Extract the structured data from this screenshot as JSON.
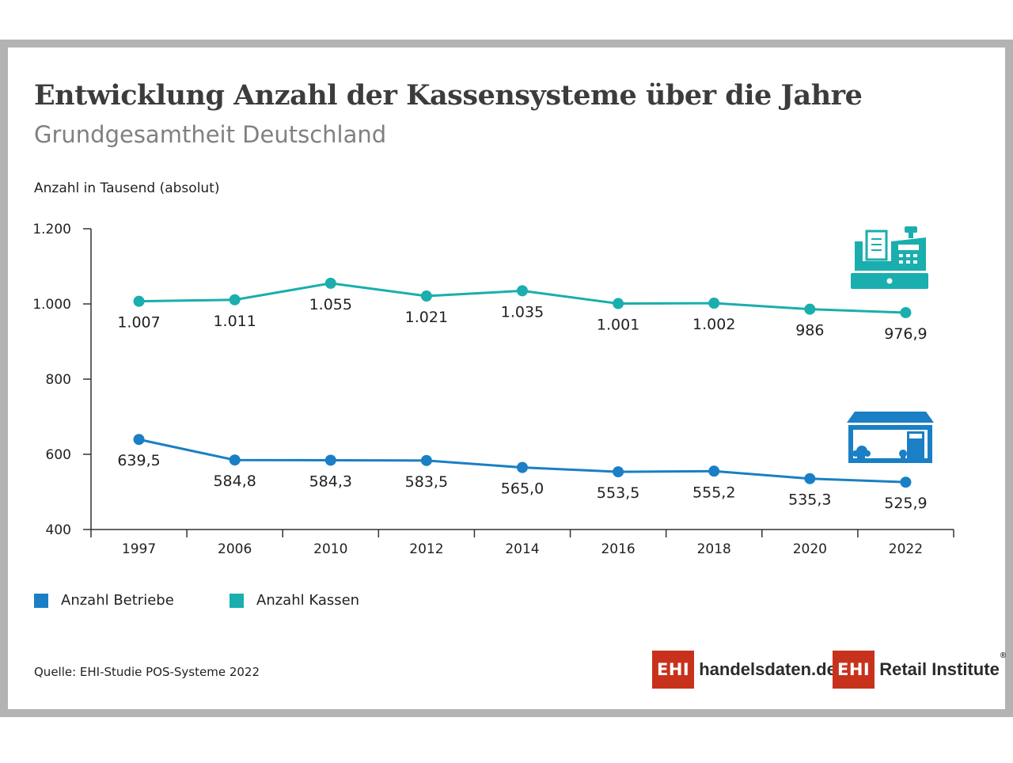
{
  "header": {
    "title": "Entwicklung Anzahl der Kassensysteme über die Jahre",
    "subtitle": "Grundgesamtheit Deutschland"
  },
  "chart_data": {
    "type": "line",
    "ylabel": "Anzahl in Tausend (absolut)",
    "ylim": [
      400,
      1200
    ],
    "yticks": [
      400,
      600,
      800,
      1000,
      1200
    ],
    "ytick_labels": [
      "400",
      "600",
      "800",
      "1.000",
      "1.200"
    ],
    "categories": [
      "1997",
      "2006",
      "2010",
      "2012",
      "2014",
      "2016",
      "2018",
      "2020",
      "2022"
    ],
    "grid": false,
    "legend_position": "bottom-left",
    "series": [
      {
        "name": "Anzahl Betriebe",
        "color": "#1a7fc4",
        "icon": "store-icon",
        "values": [
          639.5,
          584.8,
          584.3,
          583.5,
          565.0,
          553.5,
          555.2,
          535.3,
          525.9
        ],
        "labels": [
          "639,5",
          "584,8",
          "584,3",
          "583,5",
          "565,0",
          "553,5",
          "555,2",
          "535,3",
          "525,9"
        ]
      },
      {
        "name": "Anzahl Kassen",
        "color": "#1aaeae",
        "icon": "cash-register-icon",
        "values": [
          1007,
          1011,
          1055,
          1021,
          1035,
          1001,
          1002,
          986,
          976.9
        ],
        "labels": [
          "1.007",
          "1.011",
          "1.055",
          "1.021",
          "1.035",
          "1.001",
          "1.002",
          "986",
          "976,9"
        ]
      }
    ]
  },
  "footer": {
    "source": "Quelle: EHI-Studie POS-Systeme 2022",
    "logo1_box": "EHI",
    "logo1_text": "handelsdaten.de",
    "logo2_box": "EHI",
    "logo2_text": "Retail Institute",
    "logo2_reg": "®"
  }
}
